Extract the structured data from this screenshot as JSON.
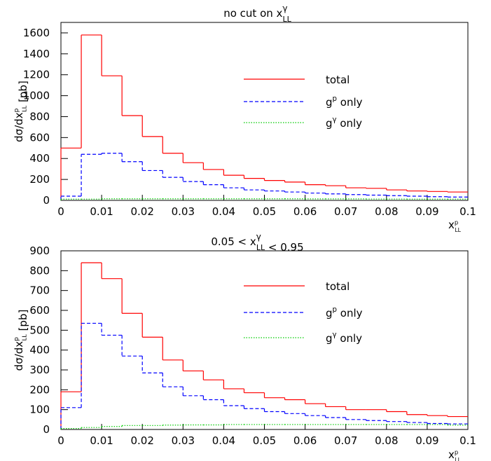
{
  "chart_data": [
    {
      "type": "histogram",
      "title": {
        "text": "no cut on x",
        "sup": "γ",
        "sub": "LL"
      },
      "ylabel": {
        "text": "dσ/dx",
        "sup": "p",
        "sub": "LL",
        "suffix": " [pb]"
      },
      "xlabel": {
        "text": "x",
        "sup": "p",
        "sub": "LL"
      },
      "bins": [
        0,
        0.005,
        0.01,
        0.015,
        0.02,
        0.025,
        0.03,
        0.035,
        0.04,
        0.045,
        0.05,
        0.055,
        0.06,
        0.065,
        0.07,
        0.075,
        0.08,
        0.085,
        0.09,
        0.095,
        0.1
      ],
      "xlim": [
        0,
        0.1
      ],
      "xticks": [
        0,
        0.01,
        0.02,
        0.03,
        0.04,
        0.05,
        0.06,
        0.07,
        0.08,
        0.09,
        0.1
      ],
      "ylim": [
        0,
        1700
      ],
      "yticks": [
        0,
        200,
        400,
        600,
        800,
        1000,
        1200,
        1400,
        1600
      ],
      "series": [
        {
          "name": {
            "text": "total"
          },
          "color": "#ff0000",
          "dash": "solid",
          "values": [
            500,
            1580,
            1190,
            810,
            610,
            450,
            360,
            295,
            240,
            210,
            190,
            175,
            150,
            140,
            120,
            115,
            100,
            90,
            85,
            80
          ]
        },
        {
          "name": {
            "text": "g",
            "sup": "p",
            "suffix": " only"
          },
          "color": "#0000ff",
          "dash": "dashed",
          "values": [
            40,
            440,
            450,
            370,
            285,
            220,
            180,
            150,
            120,
            100,
            90,
            80,
            70,
            62,
            55,
            50,
            45,
            40,
            35,
            32
          ]
        },
        {
          "name": {
            "text": "g",
            "sup": "γ",
            "suffix": " only"
          },
          "color": "#00cc00",
          "dash": "dotted",
          "values": [
            12,
            12,
            15,
            15,
            15,
            15,
            15,
            15,
            15,
            15,
            15,
            15,
            14,
            14,
            14,
            13,
            13,
            12,
            12,
            12
          ]
        }
      ]
    },
    {
      "type": "histogram",
      "title": {
        "text": "0.05 < x",
        "sup": "γ",
        "sub": "LL",
        "suffix": " < 0.95"
      },
      "ylabel": {
        "text": "dσ/dx",
        "sup": "p",
        "sub": "LL",
        "suffix": " [pb]"
      },
      "xlabel": {
        "text": "x",
        "sup": "p",
        "sub": "LL"
      },
      "bins": [
        0,
        0.005,
        0.01,
        0.015,
        0.02,
        0.025,
        0.03,
        0.035,
        0.04,
        0.045,
        0.05,
        0.055,
        0.06,
        0.065,
        0.07,
        0.075,
        0.08,
        0.085,
        0.09,
        0.095,
        0.1
      ],
      "xlim": [
        0,
        0.1
      ],
      "xticks": [
        0,
        0.01,
        0.02,
        0.03,
        0.04,
        0.05,
        0.06,
        0.07,
        0.08,
        0.09,
        0.1
      ],
      "ylim": [
        0,
        900
      ],
      "yticks": [
        0,
        100,
        200,
        300,
        400,
        500,
        600,
        700,
        800,
        900
      ],
      "series": [
        {
          "name": {
            "text": "total"
          },
          "color": "#ff0000",
          "dash": "solid",
          "values": [
            190,
            840,
            760,
            585,
            465,
            350,
            295,
            250,
            205,
            185,
            160,
            150,
            130,
            115,
            100,
            100,
            90,
            75,
            70,
            65
          ]
        },
        {
          "name": {
            "text": "g",
            "sup": "p",
            "suffix": " only"
          },
          "color": "#0000ff",
          "dash": "dashed",
          "values": [
            110,
            535,
            475,
            370,
            285,
            215,
            170,
            150,
            120,
            105,
            90,
            80,
            70,
            60,
            50,
            45,
            40,
            35,
            30,
            28
          ]
        },
        {
          "name": {
            "text": "g",
            "sup": "γ",
            "suffix": " only"
          },
          "color": "#00cc00",
          "dash": "dotted",
          "values": [
            5,
            10,
            15,
            20,
            20,
            22,
            23,
            23,
            25,
            25,
            25,
            25,
            25,
            25,
            25,
            25,
            25,
            25,
            25,
            22
          ]
        }
      ]
    }
  ]
}
